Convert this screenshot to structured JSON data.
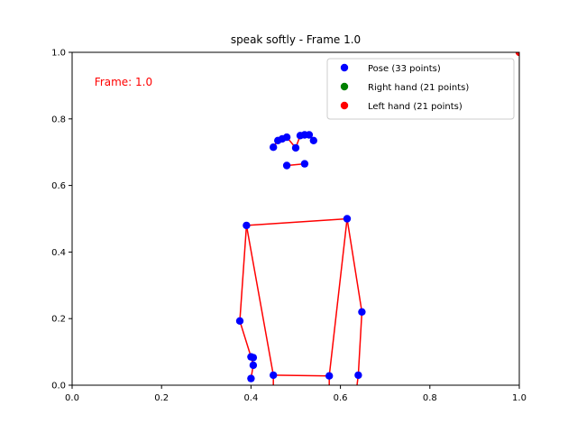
{
  "chart_data": {
    "type": "scatter",
    "title": "speak softly - Frame 1.0",
    "xlabel": "",
    "ylabel": "",
    "xlim": [
      0,
      1
    ],
    "ylim": [
      0,
      1
    ],
    "xticks": [
      "0.0",
      "0.2",
      "0.4",
      "0.6",
      "0.8",
      "1.0"
    ],
    "yticks": [
      "0.0",
      "0.2",
      "0.4",
      "0.6",
      "0.8",
      "1.0"
    ],
    "grid": false,
    "legend_position": "top-right",
    "annotation": {
      "text": "Frame: 1.0",
      "color": "#ff0000",
      "x": 0.05,
      "y": 0.91
    },
    "series": [
      {
        "name": "Pose (33 points)",
        "color": "#0000ff",
        "points": [
          [
            0.45,
            0.715
          ],
          [
            0.46,
            0.735
          ],
          [
            0.47,
            0.74
          ],
          [
            0.48,
            0.745
          ],
          [
            0.5,
            0.713
          ],
          [
            0.51,
            0.75
          ],
          [
            0.52,
            0.752
          ],
          [
            0.53,
            0.752
          ],
          [
            0.54,
            0.735
          ],
          [
            0.48,
            0.66
          ],
          [
            0.52,
            0.665
          ],
          [
            0.39,
            0.48
          ],
          [
            0.615,
            0.5
          ],
          [
            0.375,
            0.193
          ],
          [
            0.648,
            0.22
          ],
          [
            0.4,
            0.085
          ],
          [
            0.405,
            0.083
          ],
          [
            0.405,
            0.06
          ],
          [
            0.4,
            0.02
          ],
          [
            0.45,
            0.03
          ],
          [
            0.575,
            0.028
          ],
          [
            0.64,
            0.03
          ]
        ]
      },
      {
        "name": "Right hand (21 points)",
        "color": "#008000",
        "points": []
      },
      {
        "name": "Left hand (21 points)",
        "color": "#ff0000",
        "points": [
          [
            1.0,
            1.0
          ]
        ]
      }
    ],
    "connections": [
      [
        [
          0.45,
          0.715
        ],
        [
          0.46,
          0.735
        ],
        [
          0.47,
          0.74
        ],
        [
          0.48,
          0.745
        ],
        [
          0.5,
          0.713
        ],
        [
          0.51,
          0.75
        ],
        [
          0.52,
          0.752
        ],
        [
          0.53,
          0.752
        ],
        [
          0.54,
          0.735
        ]
      ],
      [
        [
          0.48,
          0.66
        ],
        [
          0.52,
          0.665
        ]
      ],
      [
        [
          0.39,
          0.48
        ],
        [
          0.615,
          0.5
        ]
      ],
      [
        [
          0.39,
          0.48
        ],
        [
          0.375,
          0.193
        ],
        [
          0.4,
          0.085
        ]
      ],
      [
        [
          0.615,
          0.5
        ],
        [
          0.648,
          0.22
        ],
        [
          0.64,
          0.03
        ]
      ],
      [
        [
          0.39,
          0.48
        ],
        [
          0.45,
          0.03
        ]
      ],
      [
        [
          0.615,
          0.5
        ],
        [
          0.575,
          0.028
        ]
      ],
      [
        [
          0.45,
          0.03
        ],
        [
          0.575,
          0.028
        ]
      ],
      [
        [
          0.4,
          0.085
        ],
        [
          0.405,
          0.06
        ],
        [
          0.4,
          0.02
        ]
      ],
      [
        [
          0.45,
          0.03
        ],
        [
          0.45,
          0.0
        ]
      ],
      [
        [
          0.575,
          0.028
        ],
        [
          0.575,
          0.0
        ]
      ],
      [
        [
          0.64,
          0.03
        ],
        [
          0.637,
          0.0
        ]
      ]
    ],
    "connection_color": "#ff0000"
  }
}
